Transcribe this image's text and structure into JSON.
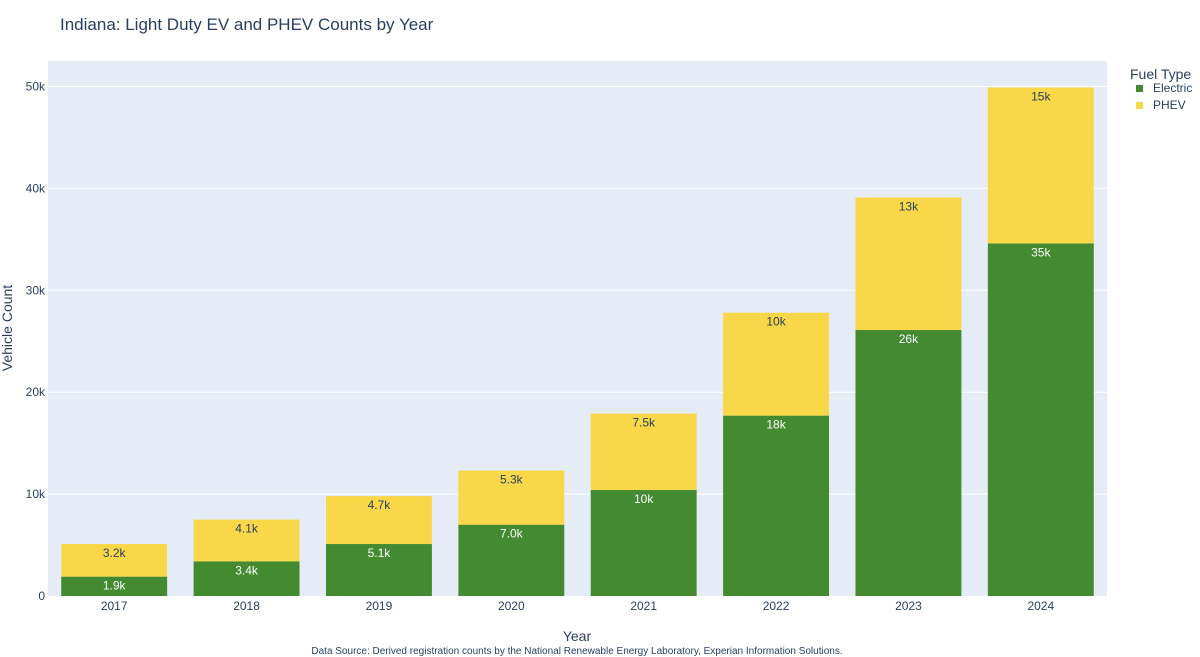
{
  "chart_data": {
    "type": "bar",
    "stacked": true,
    "title": "Indiana:  Light Duty EV and PHEV Counts by Year",
    "xlabel": "Year",
    "ylabel": "Vehicle Count",
    "ylim": [
      0,
      52500
    ],
    "yticks": [
      0,
      10000,
      20000,
      30000,
      40000,
      50000
    ],
    "ytick_labels": [
      "0",
      "10k",
      "20k",
      "30k",
      "40k",
      "50k"
    ],
    "grid": true,
    "categories": [
      "2017",
      "2018",
      "2019",
      "2020",
      "2021",
      "2022",
      "2023",
      "2024"
    ],
    "legend": {
      "title": "Fuel Type",
      "position": "top-right"
    },
    "series": [
      {
        "name": "Electric",
        "color": "#438a31",
        "label_color": "#ffffff",
        "values": [
          1900,
          3400,
          5100,
          7000,
          10400,
          17700,
          26100,
          34600
        ],
        "labels": [
          "1.9k",
          "3.4k",
          "5.1k",
          "7.0k",
          "10k",
          "18k",
          "26k",
          "35k"
        ]
      },
      {
        "name": "PHEV",
        "color": "#f8d748",
        "label_color": "#2a3f5f",
        "values": [
          3200,
          4100,
          4700,
          5300,
          7500,
          10100,
          13000,
          15300
        ],
        "labels": [
          "3.2k",
          "4.1k",
          "4.7k",
          "5.3k",
          "7.5k",
          "10k",
          "13k",
          "15k"
        ]
      }
    ],
    "source_note": "Data Source: Derived registration counts by the National Renewable Energy Laboratory, Experian Information Solutions."
  }
}
